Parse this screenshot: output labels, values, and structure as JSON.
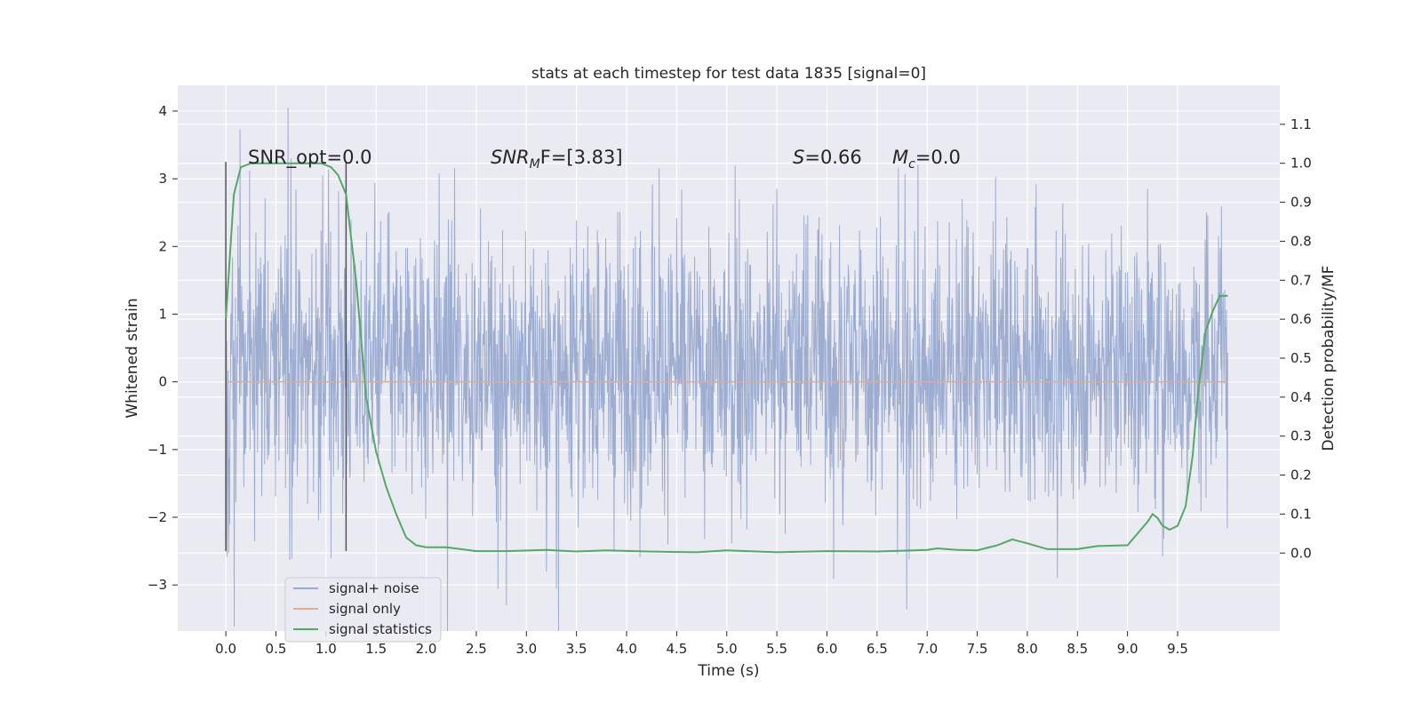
{
  "chart_data": {
    "type": "line",
    "title": "stats at each timestep for test data 1835 [signal=0]",
    "xlabel": "Time (s)",
    "ylabel_left": "Whitened strain",
    "ylabel_right": "Detection probability/MF",
    "xlim": [
      -0.48,
      10.52
    ],
    "ylim_left": [
      -3.68,
      4.38
    ],
    "ylim_right": [
      -0.2,
      1.2
    ],
    "x_ticks": [
      "0.0",
      "0.5",
      "1.0",
      "1.5",
      "2.0",
      "2.5",
      "3.0",
      "3.5",
      "4.0",
      "4.5",
      "5.0",
      "5.5",
      "6.0",
      "6.5",
      "7.0",
      "7.5",
      "8.0",
      "8.5",
      "9.0",
      "9.5"
    ],
    "y_ticks_left": [
      "−3",
      "−2",
      "−1",
      "0",
      "1",
      "2",
      "3",
      "4"
    ],
    "y_ticks_right": [
      "0.0",
      "0.1",
      "0.2",
      "0.3",
      "0.4",
      "0.5",
      "0.6",
      "0.7",
      "0.8",
      "0.9",
      "1.0",
      "1.1"
    ],
    "grid": true,
    "legend_position": "lower-left",
    "annotations": {
      "snr_opt": "SNR_opt=0.0",
      "snr_mf_prefix": "SNR",
      "snr_mf_sub": "M",
      "snr_mf_suffix": "F=[3.83]",
      "s_prefix": "S",
      "s_suffix": "=0.66",
      "mc_prefix": "M",
      "mc_sub": "c",
      "mc_suffix": "=0.0"
    },
    "vlines": [
      0.0,
      1.2
    ],
    "vline_range": [
      -2.5,
      3.25
    ],
    "series": [
      {
        "name": "signal+ noise",
        "color": "#99aacf",
        "axis": "left",
        "x_range": [
          0.0,
          10.0
        ],
        "envelope_typical": [
          -1.0,
          1.5
        ],
        "peaks": [
          [
            0.62,
            4.05
          ],
          [
            0.65,
            3.3
          ],
          [
            2.8,
            -3.3
          ],
          [
            3.2,
            -2.8
          ],
          [
            5.5,
            2.85
          ],
          [
            9.2,
            2.85
          ],
          [
            1.05,
            -2.6
          ],
          [
            8.3,
            -2.9
          ]
        ]
      },
      {
        "name": "signal only",
        "color": "#e2ab8d",
        "axis": "left",
        "x": [
          0.0,
          10.0
        ],
        "y": [
          0.0,
          0.0
        ]
      },
      {
        "name": "signal statistics",
        "color": "#55a868",
        "axis": "right",
        "x": [
          0.0,
          0.08,
          0.15,
          0.25,
          0.4,
          0.6,
          0.8,
          0.95,
          1.05,
          1.12,
          1.2,
          1.3,
          1.4,
          1.5,
          1.6,
          1.7,
          1.8,
          1.9,
          2.0,
          2.2,
          2.5,
          2.8,
          3.2,
          3.5,
          3.8,
          4.2,
          4.7,
          5.0,
          5.5,
          6.0,
          6.5,
          7.0,
          7.1,
          7.3,
          7.5,
          7.7,
          7.85,
          8.0,
          8.2,
          8.5,
          8.7,
          9.0,
          9.1,
          9.2,
          9.25,
          9.3,
          9.35,
          9.42,
          9.5,
          9.58,
          9.65,
          9.7,
          9.78,
          9.85,
          9.92,
          10.0
        ],
        "y": [
          0.6,
          0.92,
          0.99,
          1.0,
          1.0,
          1.0,
          1.0,
          1.0,
          0.99,
          0.97,
          0.92,
          0.7,
          0.4,
          0.26,
          0.17,
          0.1,
          0.04,
          0.02,
          0.015,
          0.015,
          0.005,
          0.005,
          0.008,
          0.004,
          0.007,
          0.004,
          0.002,
          0.007,
          0.002,
          0.005,
          0.004,
          0.008,
          0.012,
          0.008,
          0.007,
          0.02,
          0.035,
          0.025,
          0.01,
          0.01,
          0.018,
          0.02,
          0.05,
          0.08,
          0.1,
          0.09,
          0.07,
          0.06,
          0.07,
          0.12,
          0.25,
          0.4,
          0.57,
          0.62,
          0.66,
          0.66
        ]
      }
    ]
  }
}
